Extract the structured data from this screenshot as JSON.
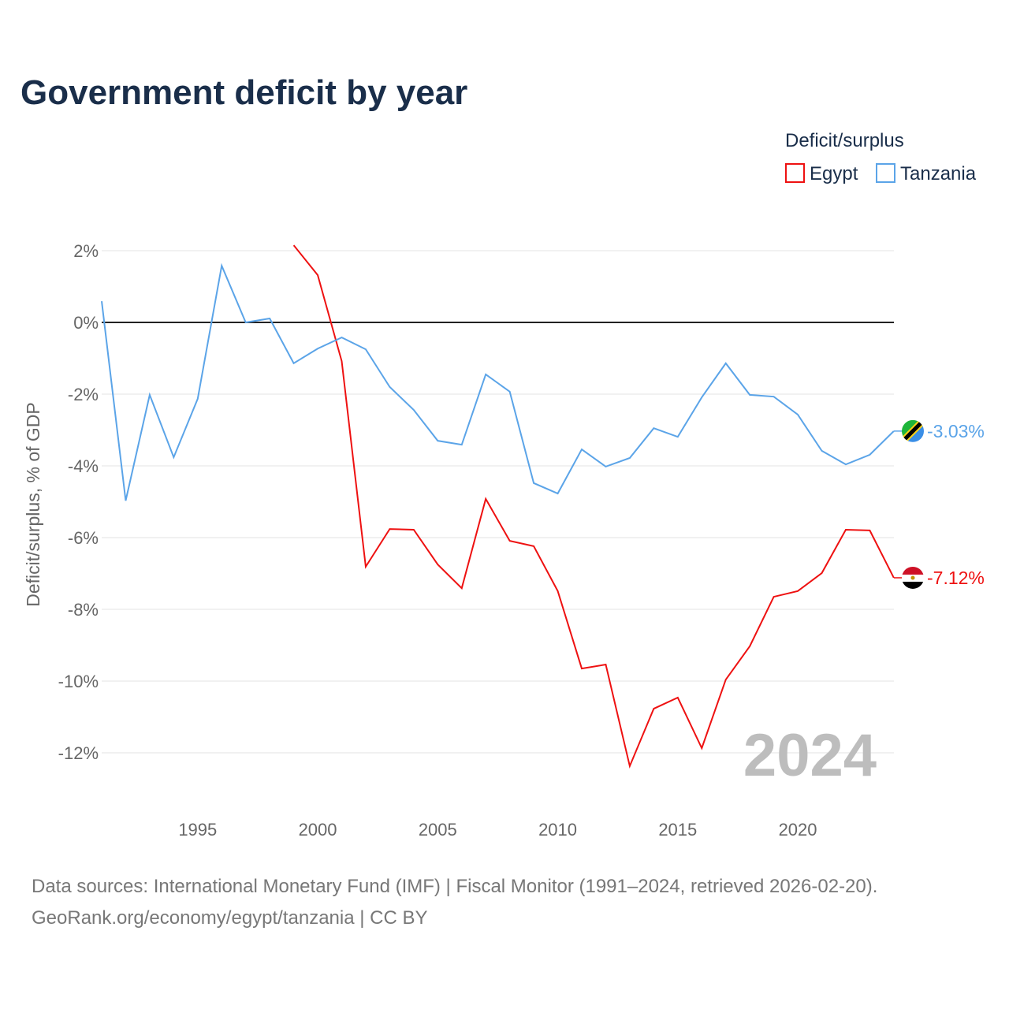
{
  "chart_data": {
    "type": "line",
    "title": "Government deficit by year",
    "xlabel": "",
    "ylabel": "Deficit/surplus, % of GDP",
    "xlim": [
      1991,
      2024
    ],
    "ylim": [
      -13,
      2.5
    ],
    "x_ticks": [
      1995,
      2000,
      2005,
      2010,
      2015,
      2020
    ],
    "x_tick_labels": [
      "1995",
      "2000",
      "2005",
      "2010",
      "2015",
      "2020"
    ],
    "y_ticks": [
      2,
      0,
      -2,
      -4,
      -6,
      -8,
      -10,
      -12
    ],
    "y_tick_labels": [
      "2%",
      "0%",
      "-2%",
      "-4%",
      "-6%",
      "-8%",
      "-10%",
      "-12%"
    ],
    "legend_title": "Deficit/surplus",
    "legend_position": "top-right",
    "year_watermark": "2024",
    "series": [
      {
        "name": "Egypt",
        "color": "#ee1111",
        "end_label": "-7.12%",
        "x": [
          1999,
          2000,
          2001,
          2002,
          2003,
          2004,
          2005,
          2006,
          2007,
          2008,
          2009,
          2010,
          2011,
          2012,
          2013,
          2014,
          2015,
          2016,
          2017,
          2018,
          2019,
          2020,
          2021,
          2022,
          2023,
          2024
        ],
        "values": [
          2.15,
          1.32,
          -1.08,
          -6.81,
          -5.76,
          -5.78,
          -6.75,
          -7.41,
          -4.92,
          -6.09,
          -6.24,
          -7.49,
          -9.65,
          -9.54,
          -12.37,
          -10.77,
          -10.46,
          -11.87,
          -9.96,
          -9.03,
          -7.65,
          -7.49,
          -6.99,
          -5.78,
          -5.8,
          -7.12
        ]
      },
      {
        "name": "Tanzania",
        "color": "#5ba4e8",
        "end_label": "-3.03%",
        "x": [
          1991,
          1992,
          1993,
          1994,
          1995,
          1996,
          1997,
          1998,
          1999,
          2000,
          2001,
          2002,
          2003,
          2004,
          2005,
          2006,
          2007,
          2008,
          2009,
          2010,
          2011,
          2012,
          2013,
          2014,
          2015,
          2016,
          2017,
          2018,
          2019,
          2020,
          2021,
          2022,
          2023,
          2024
        ],
        "values": [
          0.59,
          -4.97,
          -2.02,
          -3.76,
          -2.13,
          1.58,
          0.0,
          0.11,
          -1.14,
          -0.73,
          -0.42,
          -0.75,
          -1.8,
          -2.44,
          -3.3,
          -3.41,
          -1.45,
          -1.93,
          -4.48,
          -4.77,
          -3.54,
          -4.02,
          -3.78,
          -2.95,
          -3.19,
          -2.09,
          -1.14,
          -2.02,
          -2.07,
          -2.57,
          -3.58,
          -3.96,
          -3.69,
          -3.03
        ]
      }
    ]
  },
  "footer": {
    "line1": "Data sources: International Monetary Fund (IMF) | Fiscal Monitor (1991–2024, retrieved 2026-02-20).",
    "line2": "GeoRank.org/economy/egypt/tanzania | CC BY"
  }
}
